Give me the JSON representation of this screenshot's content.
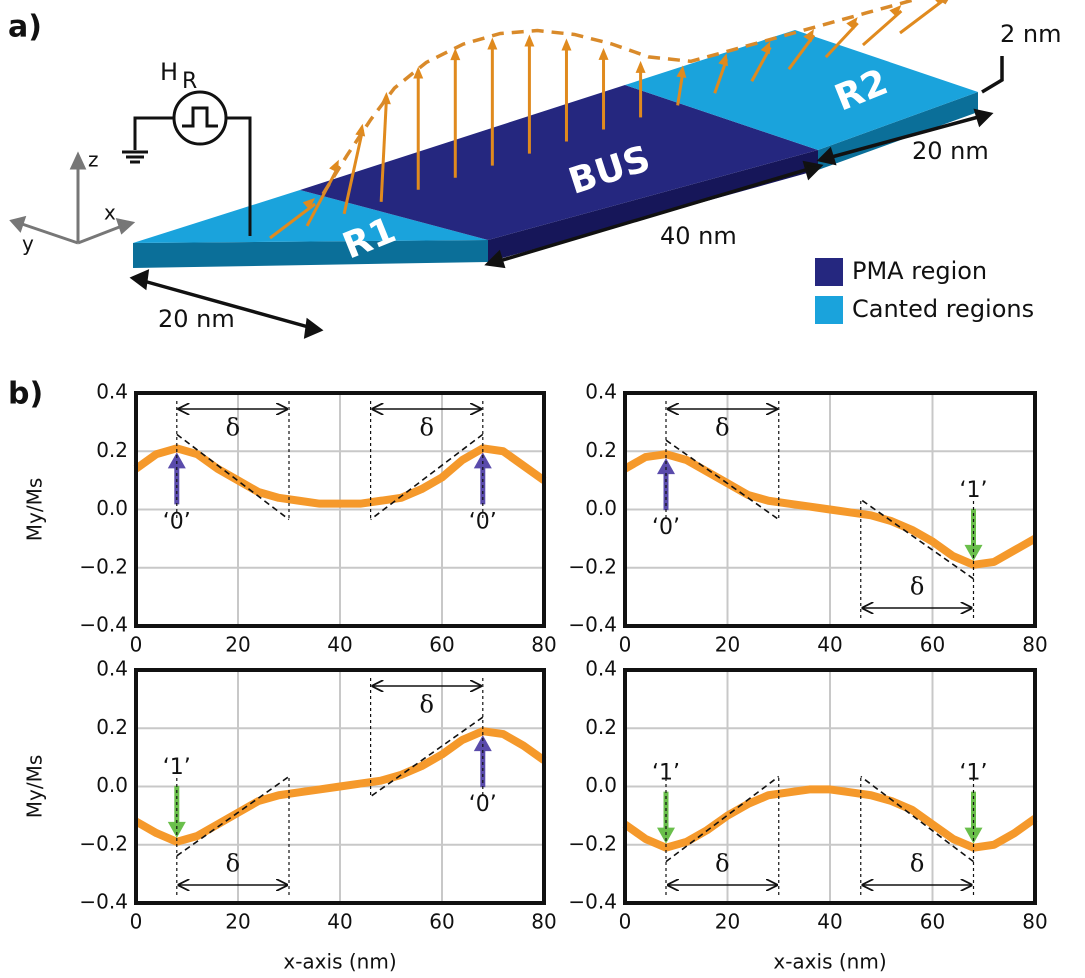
{
  "panel_a": {
    "label": "a)",
    "field": "H",
    "field_sub": "R",
    "axes": [
      "z",
      "x",
      "y"
    ],
    "regions": [
      "R1",
      "BUS",
      "R2"
    ],
    "thickness": "2 nm",
    "lengths": [
      "20 nm",
      "40 nm",
      "20 nm"
    ],
    "legend": [
      {
        "name": "PMA region",
        "color": "#25277f"
      },
      {
        "name": "Canted regions",
        "color": "#1aa3dc"
      }
    ]
  },
  "panel_b": {
    "label": "b)"
  },
  "chart_data": [
    {
      "type": "line",
      "ylabel": "My/Ms",
      "color": "#f5992b",
      "grid": true,
      "x": [
        0,
        4,
        8,
        12,
        16,
        20,
        24,
        28,
        32,
        36,
        40,
        44,
        48,
        52,
        56,
        60,
        64,
        68,
        72,
        76,
        80
      ],
      "values": [
        0.14,
        0.19,
        0.21,
        0.19,
        0.14,
        0.1,
        0.06,
        0.04,
        0.03,
        0.02,
        0.02,
        0.02,
        0.03,
        0.04,
        0.07,
        0.11,
        0.17,
        0.21,
        0.2,
        0.15,
        0.1
      ],
      "xlim": [
        0,
        80
      ],
      "ylim": [
        -0.4,
        0.4
      ],
      "xticks": [
        0,
        20,
        40,
        60,
        80
      ],
      "yticks": [
        {
          "value": -0.4,
          "label": "−0.4"
        },
        {
          "value": -0.2,
          "label": "−0.2"
        },
        {
          "value": 0,
          "label": "0.0"
        },
        0.2,
        0.4
      ],
      "annotations": [
        {
          "text": "‘0’",
          "color": "#5a4bab"
        },
        {
          "text": "‘0’",
          "color": "#5a4bab"
        }
      ],
      "brackets": [
        "δ",
        "δ"
      ]
    },
    {
      "type": "line",
      "color": "#f5992b",
      "grid": true,
      "x": [
        0,
        4,
        8,
        12,
        16,
        20,
        24,
        28,
        32,
        36,
        40,
        44,
        48,
        52,
        56,
        60,
        64,
        68,
        72,
        76,
        80
      ],
      "values": [
        0.14,
        0.18,
        0.19,
        0.17,
        0.13,
        0.09,
        0.05,
        0.03,
        0.02,
        0.01,
        0.0,
        -0.01,
        -0.02,
        -0.04,
        -0.07,
        -0.11,
        -0.16,
        -0.19,
        -0.18,
        -0.14,
        -0.1
      ],
      "xlim": [
        0,
        80
      ],
      "ylim": [
        -0.4,
        0.4
      ],
      "xticks": [
        0,
        20,
        40,
        60,
        80
      ],
      "yticks": [
        {
          "value": -0.4,
          "label": "−0.4"
        },
        {
          "value": -0.2,
          "label": "−0.2"
        },
        {
          "value": 0,
          "label": "0.0"
        },
        0.2,
        0.4
      ],
      "annotations": [
        {
          "text": "‘0’",
          "color": "#5a4bab"
        },
        {
          "text": "‘1’",
          "color": "#6abf4b"
        }
      ],
      "brackets": [
        "δ",
        "δ"
      ]
    },
    {
      "type": "line",
      "ylabel": "My/Ms",
      "xlabel": "x-axis (nm)",
      "color": "#f5992b",
      "grid": true,
      "x": [
        0,
        4,
        8,
        12,
        16,
        20,
        24,
        28,
        32,
        36,
        40,
        44,
        48,
        52,
        56,
        60,
        64,
        68,
        72,
        76,
        80
      ],
      "values": [
        -0.12,
        -0.16,
        -0.19,
        -0.17,
        -0.13,
        -0.09,
        -0.05,
        -0.03,
        -0.02,
        -0.01,
        0.0,
        0.01,
        0.02,
        0.04,
        0.07,
        0.11,
        0.16,
        0.19,
        0.18,
        0.14,
        0.09
      ],
      "xlim": [
        0,
        80
      ],
      "ylim": [
        -0.4,
        0.4
      ],
      "xticks": [
        0,
        20,
        40,
        60,
        80
      ],
      "yticks": [
        {
          "value": -0.4,
          "label": "−0.4"
        },
        {
          "value": -0.2,
          "label": "−0.2"
        },
        {
          "value": 0,
          "label": "0.0"
        },
        0.2,
        0.4
      ],
      "annotations": [
        {
          "text": "‘1’",
          "color": "#6abf4b"
        },
        {
          "text": "‘0’",
          "color": "#5a4bab"
        }
      ],
      "brackets": [
        "δ",
        "δ"
      ]
    },
    {
      "type": "line",
      "xlabel": "x-axis (nm)",
      "color": "#f5992b",
      "grid": true,
      "x": [
        0,
        4,
        8,
        12,
        16,
        20,
        24,
        28,
        32,
        36,
        40,
        44,
        48,
        52,
        56,
        60,
        64,
        68,
        72,
        76,
        80
      ],
      "values": [
        -0.13,
        -0.18,
        -0.21,
        -0.19,
        -0.15,
        -0.1,
        -0.06,
        -0.03,
        -0.02,
        -0.01,
        -0.01,
        -0.02,
        -0.03,
        -0.05,
        -0.08,
        -0.13,
        -0.18,
        -0.21,
        -0.2,
        -0.16,
        -0.11
      ],
      "xlim": [
        0,
        80
      ],
      "ylim": [
        -0.4,
        0.4
      ],
      "xticks": [
        0,
        20,
        40,
        60,
        80
      ],
      "yticks": [
        {
          "value": -0.4,
          "label": "−0.4"
        },
        {
          "value": -0.2,
          "label": "−0.2"
        },
        {
          "value": 0,
          "label": "0.0"
        },
        0.2,
        0.4
      ],
      "annotations": [
        {
          "text": "‘1’",
          "color": "#6abf4b"
        },
        {
          "text": "‘1’",
          "color": "#6abf4b"
        }
      ],
      "brackets": [
        "δ",
        "δ"
      ]
    }
  ]
}
